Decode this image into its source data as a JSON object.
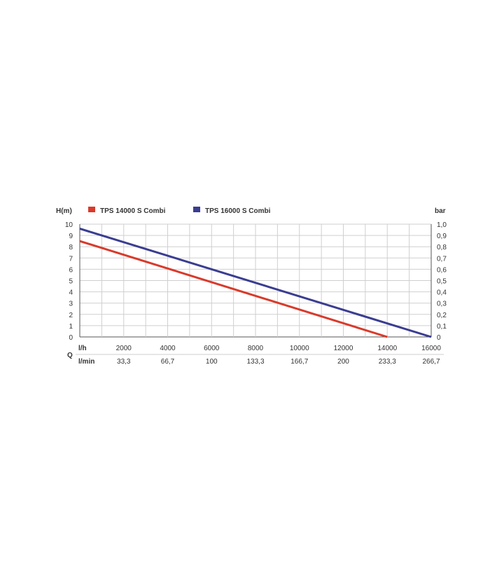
{
  "chart_data": {
    "type": "line",
    "y_label_left": "H(m)",
    "y_label_right": "bar",
    "q_label": "Q",
    "x_unit_primary": "l/h",
    "x_unit_secondary": "l/min",
    "xlim": [
      0,
      16000
    ],
    "ylim": [
      0,
      10
    ],
    "x_ticks": [
      2000,
      4000,
      6000,
      8000,
      10000,
      12000,
      14000,
      16000
    ],
    "x_tick_labels": [
      "2000",
      "4000",
      "6000",
      "8000",
      "10000",
      "12000",
      "14000",
      "16000"
    ],
    "x_secondary_tick_labels": [
      "33,3",
      "66,7",
      "100",
      "133,3",
      "166,7",
      "200",
      "233,3",
      "266,7"
    ],
    "y_ticks": [
      0,
      1,
      2,
      3,
      4,
      5,
      6,
      7,
      8,
      9,
      10
    ],
    "y_tick_labels": [
      "0",
      "1",
      "2",
      "3",
      "4",
      "5",
      "6",
      "7",
      "8",
      "9",
      "10"
    ],
    "y_right_tick_labels": [
      "0",
      "0,1",
      "0,2",
      "0,3",
      "0,4",
      "0,5",
      "0,6",
      "0,7",
      "0,8",
      "0,9",
      "1,0"
    ],
    "grid": true,
    "legend_position": "top",
    "series": [
      {
        "name": "TPS 14000 S Combi",
        "color": "#d93a2b",
        "x": [
          0,
          14000
        ],
        "y": [
          8.5,
          0
        ]
      },
      {
        "name": "TPS 16000 S Combi",
        "color": "#3a3d91",
        "x": [
          0,
          16000
        ],
        "y": [
          9.6,
          0
        ]
      }
    ],
    "grid_color": "#cfcfcf",
    "axis_color": "#555555"
  }
}
